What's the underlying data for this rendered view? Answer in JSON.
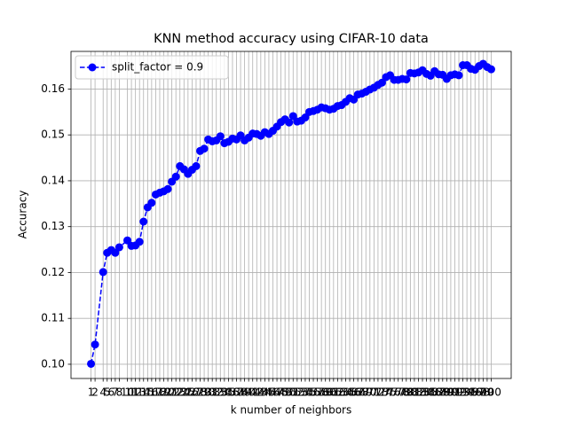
{
  "chart_data": {
    "type": "line",
    "title": "KNN method accuracy using CIFAR-10 data",
    "xlabel": "k number of neighbors",
    "ylabel": "Accuracy",
    "x": [
      1,
      2,
      4,
      5,
      6,
      7,
      8,
      10,
      11,
      12,
      13,
      14,
      15,
      16,
      17,
      18,
      19,
      20,
      21,
      22,
      23,
      24,
      25,
      26,
      27,
      28,
      29,
      30,
      31,
      32,
      33,
      34,
      35,
      36,
      37,
      38,
      39,
      40,
      41,
      42,
      43,
      44,
      45,
      46,
      47,
      48,
      49,
      50,
      51,
      52,
      53,
      54,
      55,
      56,
      57,
      58,
      59,
      60,
      61,
      62,
      63,
      64,
      65,
      66,
      67,
      68,
      69,
      70,
      71,
      72,
      73,
      74,
      75,
      76,
      77,
      78,
      79,
      80,
      81,
      82,
      83,
      84,
      85,
      86,
      87,
      88,
      89,
      90,
      91,
      92,
      93,
      94,
      95,
      96,
      97,
      98,
      99,
      100
    ],
    "series": [
      {
        "name": "split_factor = 0.9",
        "color": "#0000ff",
        "values": [
          0.1001,
          0.1043,
          0.1201,
          0.1243,
          0.1249,
          0.1243,
          0.1255,
          0.127,
          0.1258,
          0.1259,
          0.1267,
          0.1311,
          0.1342,
          0.1352,
          0.137,
          0.1374,
          0.1377,
          0.1382,
          0.1398,
          0.1409,
          0.1432,
          0.1425,
          0.1415,
          0.1424,
          0.1432,
          0.1465,
          0.147,
          0.149,
          0.1486,
          0.1488,
          0.1497,
          0.1482,
          0.1485,
          0.1492,
          0.149,
          0.1499,
          0.1488,
          0.1494,
          0.1503,
          0.1502,
          0.1498,
          0.1506,
          0.1502,
          0.1509,
          0.1518,
          0.1528,
          0.1534,
          0.1527,
          0.1541,
          0.1529,
          0.1531,
          0.1538,
          0.155,
          0.1552,
          0.1555,
          0.156,
          0.1558,
          0.1555,
          0.1557,
          0.1563,
          0.1565,
          0.1572,
          0.158,
          0.1577,
          0.1588,
          0.159,
          0.1594,
          0.1599,
          0.1603,
          0.1609,
          0.1614,
          0.1626,
          0.163,
          0.162,
          0.162,
          0.1622,
          0.1621,
          0.1635,
          0.1634,
          0.1636,
          0.1641,
          0.1633,
          0.1629,
          0.1639,
          0.1632,
          0.1631,
          0.1622,
          0.163,
          0.1632,
          0.163,
          0.1652,
          0.1652,
          0.1644,
          0.1642,
          0.165,
          0.1655,
          0.1648,
          0.1643
        ]
      }
    ],
    "xlim": [
      -3.95,
      104.95
    ],
    "xticks": [
      1,
      2,
      4,
      5,
      6,
      7,
      8,
      10,
      11,
      12,
      13,
      14,
      15,
      16,
      17,
      18,
      19,
      20,
      21,
      22,
      23,
      24,
      25,
      26,
      27,
      28,
      29,
      30,
      31,
      32,
      33,
      34,
      35,
      36,
      37,
      38,
      39,
      40,
      41,
      42,
      43,
      44,
      45,
      46,
      47,
      48,
      49,
      50,
      51,
      52,
      53,
      54,
      55,
      56,
      57,
      58,
      59,
      60,
      61,
      62,
      63,
      64,
      65,
      66,
      67,
      68,
      69,
      70,
      71,
      72,
      73,
      74,
      75,
      76,
      77,
      78,
      79,
      80,
      81,
      82,
      83,
      84,
      85,
      86,
      87,
      88,
      89,
      90,
      91,
      92,
      93,
      94,
      95,
      96,
      97,
      98,
      99,
      100
    ],
    "ylim": [
      0.0969,
      0.1682
    ],
    "yticks": [
      {
        "value": 0.1,
        "label": "0.10"
      },
      {
        "value": 0.11,
        "label": "0.11"
      },
      {
        "value": 0.12,
        "label": "0.12"
      },
      {
        "value": 0.13,
        "label": "0.13"
      },
      {
        "value": 0.14,
        "label": "0.14"
      },
      {
        "value": 0.15,
        "label": "0.15"
      },
      {
        "value": 0.16,
        "label": "0.16"
      }
    ],
    "grid": true,
    "legend": "upper left"
  }
}
